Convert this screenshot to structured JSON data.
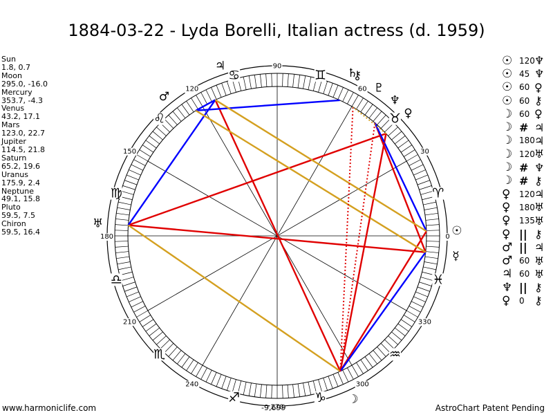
{
  "title": "1884-03-22 - Lyda Borelli, Italian actress (d. 1959)",
  "positions": [
    {
      "name": "Sun",
      "value": "1.8, 0.7"
    },
    {
      "name": "Moon",
      "value": "295.0, -16.0"
    },
    {
      "name": "Mercury",
      "value": "353.7, -4.3"
    },
    {
      "name": "Venus",
      "value": "43.2, 17.1"
    },
    {
      "name": "Mars",
      "value": "123.0, 22.7"
    },
    {
      "name": "Jupiter",
      "value": "114.5, 21.8"
    },
    {
      "name": "Saturn",
      "value": "65.2, 19.6"
    },
    {
      "name": "Uranus",
      "value": "175.9, 2.4"
    },
    {
      "name": "Neptune",
      "value": "49.1, 15.8"
    },
    {
      "name": "Pluto",
      "value": "59.5, 7.5"
    },
    {
      "name": "Chiron",
      "value": "59.5, 16.4"
    }
  ],
  "aspects": [
    {
      "p1": "☉",
      "aspect": "120",
      "p2": "♆"
    },
    {
      "p1": "☉",
      "aspect": "45",
      "p2": "♆"
    },
    {
      "p1": "☉",
      "aspect": "60",
      "p2": "♀"
    },
    {
      "p1": "☉",
      "aspect": "60",
      "p2": "⚷"
    },
    {
      "p1": "☽",
      "aspect": "60",
      "p2": "♀"
    },
    {
      "p1": "☽",
      "aspect": "#",
      "p2": "♃"
    },
    {
      "p1": "☽",
      "aspect": "180",
      "p2": "♃"
    },
    {
      "p1": "☽",
      "aspect": "120",
      "p2": "♅"
    },
    {
      "p1": "☽",
      "aspect": "#",
      "p2": "♆"
    },
    {
      "p1": "☽",
      "aspect": "#",
      "p2": "⚷"
    },
    {
      "p1": "♀",
      "aspect": "120",
      "p2": "♃"
    },
    {
      "p1": "♀",
      "aspect": "180",
      "p2": "♅"
    },
    {
      "p1": "♀",
      "aspect": "135",
      "p2": "♅"
    },
    {
      "p1": "♀",
      "aspect": "||",
      "p2": "⚷"
    },
    {
      "p1": "♂",
      "aspect": "||",
      "p2": "♃"
    },
    {
      "p1": "♂",
      "aspect": "60",
      "p2": "♅"
    },
    {
      "p1": "♃",
      "aspect": "60",
      "p2": "♅"
    },
    {
      "p1": "♆",
      "aspect": "||",
      "p2": "⚷"
    },
    {
      "p1": "♀",
      "aspect": "0",
      "p2": "⚷"
    }
  ],
  "wheel": {
    "degree_labels": [
      "0",
      "30",
      "60",
      "90",
      "120",
      "150",
      "180",
      "210",
      "240",
      "270",
      "300",
      "330"
    ],
    "sign_glyphs": [
      "♈",
      "♉",
      "♊",
      "♋",
      "♌",
      "♍",
      "♎",
      "♏",
      "♐",
      "♑",
      "♒",
      "♓"
    ],
    "planets": [
      {
        "glyph": "☉",
        "lon": 1.8
      },
      {
        "glyph": "☽",
        "lon": 295.0
      },
      {
        "glyph": "☿",
        "lon": 353.7
      },
      {
        "glyph": "♀",
        "lon": 43.2
      },
      {
        "glyph": "♂",
        "lon": 123.0
      },
      {
        "glyph": "♃",
        "lon": 114.5
      },
      {
        "glyph": "♄",
        "lon": 65.2
      },
      {
        "glyph": "♅",
        "lon": 175.9
      },
      {
        "glyph": "♆",
        "lon": 49.1
      },
      {
        "glyph": "♇",
        "lon": 59.5
      },
      {
        "glyph": "⚷",
        "lon": 59.5
      }
    ],
    "colors": {
      "red": "#e00000",
      "blue": "#0000ff",
      "gold": "#d4a020",
      "black": "#000000"
    },
    "aspect_lines": [
      {
        "a": 1.8,
        "b": 295.0,
        "color": "red",
        "style": "solid"
      },
      {
        "a": 295.0,
        "b": 114.5,
        "color": "red",
        "style": "solid"
      },
      {
        "a": 353.7,
        "b": 175.9,
        "color": "red",
        "style": "solid"
      },
      {
        "a": 43.2,
        "b": 175.9,
        "color": "red",
        "style": "solid"
      },
      {
        "a": 49.1,
        "b": 353.7,
        "color": "red",
        "style": "solid"
      },
      {
        "a": 43.2,
        "b": 295.0,
        "color": "red",
        "style": "solid"
      },
      {
        "a": 123.0,
        "b": 114.5,
        "color": "blue",
        "style": "solid"
      },
      {
        "a": 114.5,
        "b": 175.9,
        "color": "blue",
        "style": "solid"
      },
      {
        "a": 123.0,
        "b": 65.2,
        "color": "blue",
        "style": "solid"
      },
      {
        "a": 295.0,
        "b": 353.7,
        "color": "blue",
        "style": "solid"
      },
      {
        "a": 1.8,
        "b": 49.1,
        "color": "blue",
        "style": "solid"
      },
      {
        "a": 114.5,
        "b": 1.8,
        "color": "gold",
        "style": "solid"
      },
      {
        "a": 123.0,
        "b": 353.7,
        "color": "gold",
        "style": "solid"
      },
      {
        "a": 175.9,
        "b": 295.0,
        "color": "gold",
        "style": "solid"
      },
      {
        "a": 295.0,
        "b": 59.5,
        "color": "red",
        "style": "dotted"
      },
      {
        "a": 295.0,
        "b": 49.1,
        "color": "red",
        "style": "dotted"
      },
      {
        "a": 295.0,
        "b": 43.2,
        "color": "red",
        "style": "dotted"
      },
      {
        "a": 43.2,
        "b": 59.5,
        "color": "gold",
        "style": "dotted"
      }
    ]
  },
  "footer": {
    "website": "www.harmoniclife.com",
    "center_value": "-9,699",
    "patent": "AstroChart Patent Pending"
  }
}
